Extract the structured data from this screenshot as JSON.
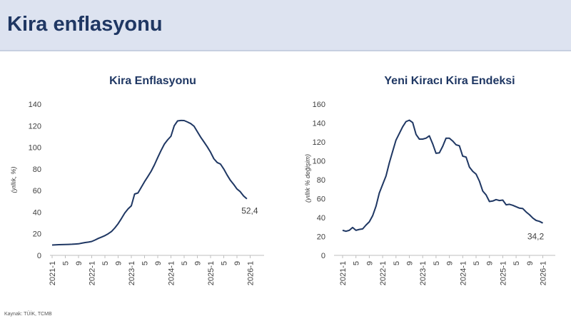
{
  "page": {
    "title": "Kira enflasyonu",
    "source": "Kaynak: TÜİK, TCMB"
  },
  "charts": [
    {
      "title": "Kira Enflasyonu",
      "ylabel": "(yıllık, %)",
      "line_color": "#1f3763"
    },
    {
      "title": "Yeni Kiracı Kira Endeksi",
      "ylabel": "(yıllık % değişim)",
      "line_color": "#1f3763"
    }
  ],
  "chart_data": [
    {
      "type": "line",
      "title": "Kira Enflasyonu",
      "xlabel": "",
      "ylabel": "(yıllık, %)",
      "ylim": [
        0,
        140
      ],
      "yticks": [
        0,
        20,
        40,
        60,
        80,
        100,
        120,
        140
      ],
      "xtick_labels": [
        "2021-1",
        "5",
        "9",
        "2022-1",
        "5",
        "9",
        "2023-1",
        "5",
        "9",
        "2024-1",
        "5",
        "9",
        "2025-1",
        "5",
        "9",
        "2026-1"
      ],
      "x_start": "2021-1",
      "grid": false,
      "end_label": "52,4",
      "values": [
        9.6,
        9.7,
        9.9,
        10.0,
        10.1,
        10.2,
        10.3,
        10.5,
        10.7,
        11.3,
        11.9,
        12.3,
        12.9,
        14.2,
        15.7,
        17.0,
        18.3,
        20.0,
        22.2,
        25.4,
        29.3,
        34.1,
        39.2,
        43.0,
        45.9,
        56.8,
        57.8,
        63.0,
        68.2,
        72.9,
        77.9,
        83.9,
        90.6,
        97.0,
        103.0,
        107.0,
        110.3,
        120.0,
        124.5,
        124.9,
        124.8,
        123.5,
        122.0,
        119.5,
        114.5,
        109.5,
        105.0,
        100.5,
        95.5,
        89.5,
        86.0,
        84.5,
        80.0,
        74.5,
        69.5,
        65.7,
        61.5,
        59.0,
        55.0,
        52.4
      ],
      "series": [
        {
          "name": "",
          "color": "#1f3763"
        }
      ]
    },
    {
      "type": "line",
      "title": "Yeni Kiracı Kira Endeksi",
      "xlabel": "",
      "ylabel": "(yıllık % değişim)",
      "ylim": [
        0,
        160
      ],
      "yticks": [
        0,
        20,
        40,
        60,
        80,
        100,
        120,
        140,
        160
      ],
      "xtick_labels": [
        "2021-1",
        "5",
        "9",
        "2022-1",
        "5",
        "9",
        "2023-1",
        "5",
        "9",
        "2024-1",
        "5",
        "9",
        "2025-1",
        "5",
        "9",
        "2026-1"
      ],
      "x_start": "2021-1",
      "grid": false,
      "end_label": "34,2",
      "values": [
        26.5,
        25.5,
        26.5,
        29.5,
        26.5,
        27.5,
        28.0,
        32.0,
        35.5,
        42.0,
        52.0,
        66.0,
        75.0,
        84.0,
        98.0,
        110.0,
        122.0,
        129.0,
        136.0,
        141.5,
        143.0,
        140.5,
        128.0,
        123.0,
        123.0,
        124.0,
        126.5,
        118.0,
        108.0,
        108.5,
        115.5,
        124.0,
        124.0,
        121.0,
        117.0,
        116.0,
        105.0,
        104.0,
        93.5,
        89.0,
        86.0,
        78.5,
        68.0,
        64.0,
        57.0,
        57.5,
        59.0,
        58.0,
        58.5,
        53.5,
        54.0,
        53.0,
        51.5,
        50.0,
        49.5,
        46.0,
        43.0,
        39.5,
        37.0,
        36.0,
        34.2
      ],
      "series": [
        {
          "name": "",
          "color": "#1f3763"
        }
      ]
    }
  ]
}
